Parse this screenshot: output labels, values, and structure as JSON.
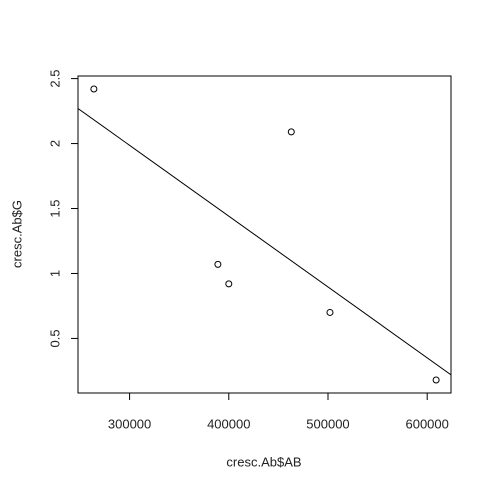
{
  "chart_data": {
    "type": "scatter",
    "x_label": "cresc.Ab$AB",
    "y_label": "cresc.Ab$G",
    "x": [
      264000,
      463000,
      389000,
      400000,
      502000,
      609000
    ],
    "values": [
      2.42,
      2.09,
      1.07,
      0.92,
      0.7,
      0.18
    ],
    "color": "#000000",
    "xlim": [
      248000,
      624000
    ],
    "xticks": [
      300000,
      400000,
      500000,
      600000
    ],
    "ylim": [
      0.08,
      2.52
    ],
    "yticks": [
      0.5,
      1.0,
      1.5,
      2.0,
      2.5
    ],
    "trend_line": {
      "x": [
        248000,
        624000
      ],
      "y": [
        2.27,
        0.22
      ]
    }
  }
}
